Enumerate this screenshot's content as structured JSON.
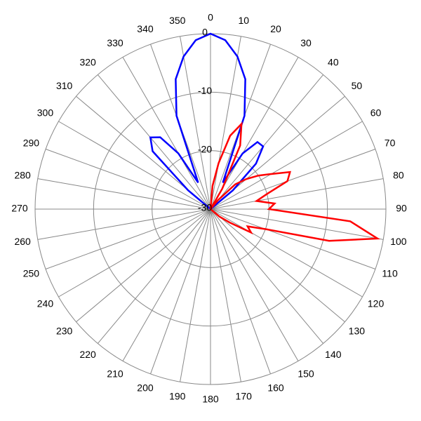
{
  "chart_data": {
    "type": "polar",
    "theta_direction": "clockwise",
    "theta_zero": "top",
    "thetaticks": [
      0,
      10,
      20,
      30,
      40,
      50,
      60,
      70,
      80,
      90,
      100,
      110,
      120,
      130,
      140,
      150,
      160,
      170,
      180,
      190,
      200,
      210,
      220,
      230,
      240,
      250,
      260,
      270,
      280,
      290,
      300,
      310,
      320,
      330,
      340,
      350
    ],
    "rlim": [
      -30,
      0
    ],
    "rticks": [
      -30,
      -20,
      -10,
      0
    ],
    "grid": true,
    "x": [
      0,
      5,
      10,
      15,
      20,
      25,
      30,
      35,
      40,
      45,
      50,
      55,
      60,
      65,
      70,
      75,
      80,
      85,
      90,
      95,
      100,
      105,
      110,
      115,
      120,
      125,
      130,
      135,
      140,
      145,
      150,
      155,
      160,
      165,
      170,
      175,
      180,
      185,
      190,
      195,
      200,
      205,
      210,
      215,
      220,
      225,
      230,
      235,
      240,
      245,
      250,
      255,
      260,
      265,
      270,
      275,
      280,
      285,
      290,
      295,
      300,
      305,
      310,
      315,
      320,
      325,
      330,
      335,
      340,
      345,
      350,
      355
    ],
    "series": [
      {
        "name": "Blue",
        "color": "#0000ff",
        "values": [
          0,
          -1,
          -3.5,
          -7,
          -13,
          -25,
          -19,
          -16,
          -16,
          -19,
          -25,
          -30,
          -30,
          -30,
          -30,
          -30,
          -30,
          -30,
          -30,
          -30,
          -30,
          -30,
          -30,
          -30,
          -30,
          -30,
          -30,
          -30,
          -30,
          -30,
          -30,
          -30,
          -30,
          -30,
          -30,
          -30,
          -30,
          -30,
          -30,
          -30,
          -30,
          -30,
          -30,
          -30,
          -30,
          -30,
          -30,
          -30,
          -30,
          -30,
          -30,
          -30,
          -30,
          -30,
          -30,
          -30,
          -30,
          -30,
          -30,
          -30,
          -30,
          -30,
          -25,
          -16,
          -14,
          -15,
          -19,
          -25,
          -13,
          -7,
          -3.5,
          -1
        ]
      },
      {
        "name": "Red",
        "color": "#ff0000",
        "values": [
          -30,
          -26,
          -22,
          -17,
          -14.5,
          -18,
          -26,
          -30,
          -28,
          -24,
          -22,
          -20,
          -18,
          -15,
          -16,
          -20,
          -22,
          -19,
          -20,
          -6,
          -1,
          -9,
          -20,
          -23,
          -22,
          -26,
          -28,
          -30,
          -30,
          -30,
          -30,
          -30,
          -30,
          -30,
          -30,
          -30,
          -30,
          -30,
          -30,
          -30,
          -30,
          -30,
          -30,
          -30,
          -30,
          -30,
          -30,
          -30,
          -30,
          -30,
          -30,
          -30,
          -30,
          -30,
          -30,
          -30,
          -30,
          -30,
          -30,
          -30,
          -30,
          -30,
          -30,
          -30,
          -30,
          -30,
          -30,
          -30,
          -30,
          -30,
          -30,
          -30
        ]
      }
    ]
  }
}
